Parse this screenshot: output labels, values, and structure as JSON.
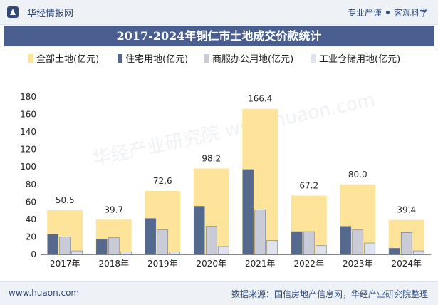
{
  "header": {
    "brand": "华经情报网",
    "slogan_left": "专业严谨",
    "slogan_right": "客观科学",
    "logo_icon": "huajing-logo-icon"
  },
  "footer": {
    "site": "www.huaon.com",
    "source": "数据来源：国信房地产信息网，华经产业研究院整理"
  },
  "watermark": "华经产业研究院 www.huaon.com",
  "colors": {
    "total": "#fde49a",
    "residential": "#55698f",
    "commercial": "#c9ccd6",
    "industrial": "#dfe3ee",
    "title_bg": "#4a5f8f"
  },
  "chart_data": {
    "type": "bar",
    "title": "2017-2024年铜仁市土地成交价款统计",
    "categories": [
      "2017年",
      "2018年",
      "2019年",
      "2020年",
      "2021年",
      "2022年",
      "2023年",
      "2024年"
    ],
    "series": [
      {
        "name": "全部土地(亿元)",
        "values": [
          50.5,
          39.7,
          72.6,
          98.2,
          166.4,
          67.2,
          80.0,
          39.4
        ]
      },
      {
        "name": "住宅用地(亿元)",
        "values": [
          23,
          17,
          41,
          55,
          97,
          26,
          32,
          7
        ]
      },
      {
        "name": "商服办公用地(亿元)",
        "values": [
          20,
          19,
          28,
          32,
          51,
          26,
          28,
          25
        ]
      },
      {
        "name": "工业仓储用地(亿元)",
        "values": [
          4,
          3,
          3,
          9,
          16,
          10,
          13,
          4
        ]
      }
    ],
    "total_labels": [
      "50.5",
      "39.7",
      "72.6",
      "98.2",
      "166.4",
      "67.2",
      "80.0",
      "39.4"
    ],
    "yticks": [
      "0",
      "20",
      "40",
      "60",
      "80",
      "100",
      "120",
      "140",
      "160",
      "180"
    ],
    "ylim": [
      0,
      180
    ],
    "grid": false,
    "legend_position": "top"
  }
}
